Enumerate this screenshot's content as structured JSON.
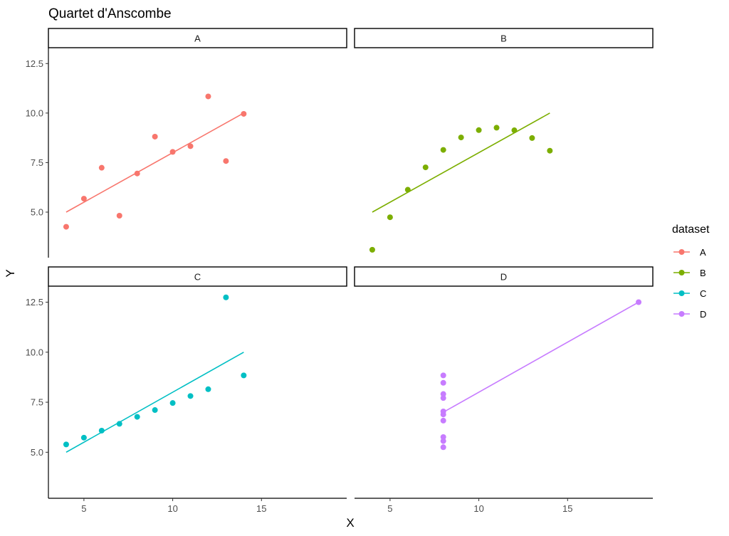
{
  "chart_data": {
    "type": "scatter",
    "title": "Quartet d'Anscombe",
    "xlabel": "X",
    "ylabel": "Y",
    "legend_title": "dataset",
    "legend_position": "right",
    "grid": false,
    "xlim": [
      3.0,
      19.8
    ],
    "ylim": [
      2.7,
      13.3
    ],
    "x_ticks": [
      5,
      10,
      15
    ],
    "y_ticks": [
      5.0,
      7.5,
      10.0,
      12.5
    ],
    "x_tick_labels": [
      "5",
      "10",
      "15"
    ],
    "y_tick_labels": [
      "5.0",
      "7.5",
      "10.0",
      "12.5"
    ],
    "panels": [
      {
        "label": "A",
        "color": "#F8766D",
        "points": [
          [
            4,
            4.26
          ],
          [
            5,
            5.68
          ],
          [
            6,
            7.24
          ],
          [
            7,
            4.82
          ],
          [
            8,
            6.95
          ],
          [
            9,
            8.81
          ],
          [
            10,
            8.04
          ],
          [
            11,
            8.33
          ],
          [
            12,
            10.84
          ],
          [
            13,
            7.58
          ],
          [
            14,
            9.96
          ]
        ],
        "fit_line": [
          [
            4,
            5.0
          ],
          [
            14,
            10.0
          ]
        ]
      },
      {
        "label": "B",
        "color": "#7CAE00",
        "points": [
          [
            4,
            3.1
          ],
          [
            5,
            4.74
          ],
          [
            6,
            6.13
          ],
          [
            7,
            7.26
          ],
          [
            8,
            8.14
          ],
          [
            9,
            8.77
          ],
          [
            10,
            9.14
          ],
          [
            11,
            9.26
          ],
          [
            12,
            9.13
          ],
          [
            13,
            8.74
          ],
          [
            14,
            8.1
          ]
        ],
        "fit_line": [
          [
            4,
            5.0
          ],
          [
            14,
            10.0
          ]
        ]
      },
      {
        "label": "C",
        "color": "#00BFC4",
        "points": [
          [
            4,
            5.39
          ],
          [
            5,
            5.73
          ],
          [
            6,
            6.08
          ],
          [
            7,
            6.42
          ],
          [
            8,
            6.77
          ],
          [
            9,
            7.11
          ],
          [
            10,
            7.46
          ],
          [
            11,
            7.81
          ],
          [
            12,
            8.15
          ],
          [
            13,
            12.74
          ],
          [
            14,
            8.84
          ]
        ],
        "fit_line": [
          [
            4,
            5.0
          ],
          [
            14,
            10.0
          ]
        ]
      },
      {
        "label": "D",
        "color": "#C77CFF",
        "points": [
          [
            8,
            5.25
          ],
          [
            8,
            5.56
          ],
          [
            8,
            5.76
          ],
          [
            8,
            6.58
          ],
          [
            8,
            6.89
          ],
          [
            8,
            7.04
          ],
          [
            8,
            7.71
          ],
          [
            8,
            7.91
          ],
          [
            8,
            8.47
          ],
          [
            8,
            8.84
          ],
          [
            19,
            12.5
          ]
        ],
        "fit_line": [
          [
            8,
            7.0
          ],
          [
            19,
            12.5
          ]
        ]
      }
    ]
  }
}
